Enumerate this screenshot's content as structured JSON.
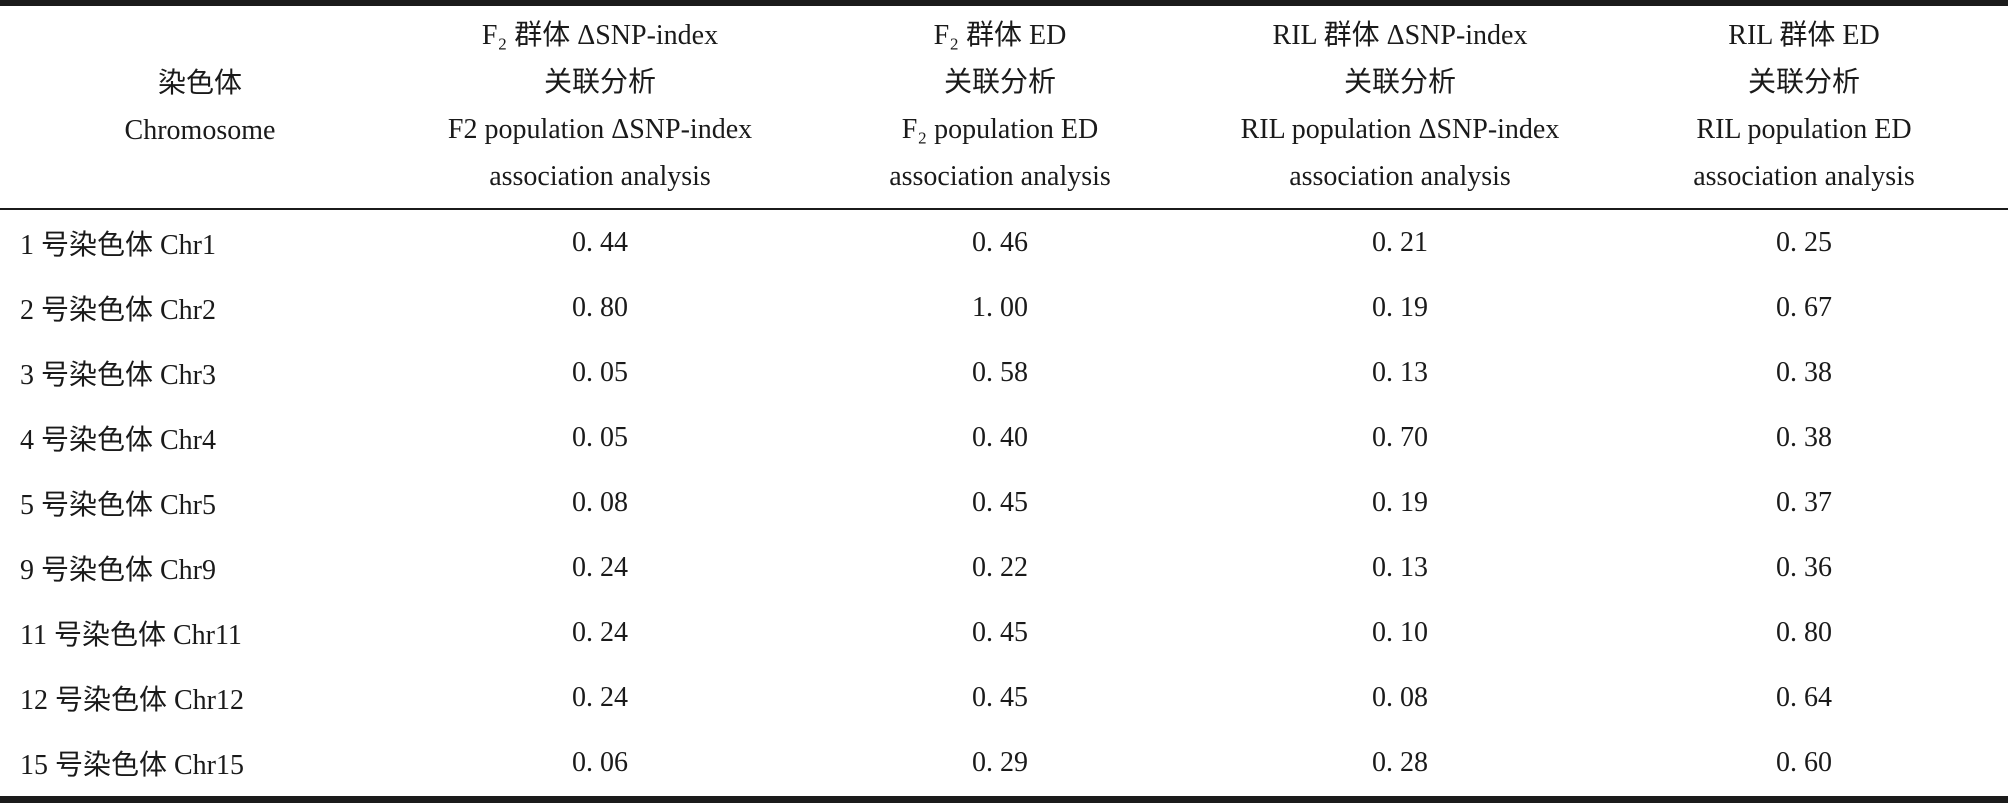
{
  "colors": {
    "background": "#ffffff",
    "text": "#1a1a1a",
    "rule": "#1b1b1b"
  },
  "table": {
    "header": {
      "chromosome": {
        "zh": "染色体",
        "en": "Chromosome"
      },
      "cols": [
        {
          "lines": [
            "F₂ 群体 ΔSNP-index",
            "关联分析",
            "F2 population ΔSNP-index",
            "association analysis"
          ]
        },
        {
          "lines": [
            "F₂ 群体 ED",
            "关联分析",
            "F₂ population ED",
            "association analysis"
          ]
        },
        {
          "lines": [
            "RIL 群体 ΔSNP-index",
            "关联分析",
            "RIL population ΔSNP-index",
            "association analysis"
          ]
        },
        {
          "lines": [
            "RIL 群体 ED",
            "关联分析",
            "RIL population ED",
            "association analysis"
          ]
        }
      ]
    },
    "rows": [
      {
        "label": "1 号染色体 Chr1",
        "values": [
          "0. 44",
          "0. 46",
          "0. 21",
          "0. 25"
        ]
      },
      {
        "label": "2 号染色体 Chr2",
        "values": [
          "0. 80",
          "1. 00",
          "0. 19",
          "0. 67"
        ]
      },
      {
        "label": "3 号染色体 Chr3",
        "values": [
          "0. 05",
          "0. 58",
          "0. 13",
          "0. 38"
        ]
      },
      {
        "label": "4 号染色体 Chr4",
        "values": [
          "0. 05",
          "0. 40",
          "0. 70",
          "0. 38"
        ]
      },
      {
        "label": "5 号染色体 Chr5",
        "values": [
          "0. 08",
          "0. 45",
          "0. 19",
          "0. 37"
        ]
      },
      {
        "label": "9 号染色体 Chr9",
        "values": [
          "0. 24",
          "0. 22",
          "0. 13",
          "0. 36"
        ]
      },
      {
        "label": "11 号染色体 Chr11",
        "values": [
          "0. 24",
          "0. 45",
          "0. 10",
          "0. 80"
        ]
      },
      {
        "label": "12 号染色体 Chr12",
        "values": [
          "0. 24",
          "0. 45",
          "0. 08",
          "0. 64"
        ]
      },
      {
        "label": "15 号染色体 Chr15",
        "values": [
          "0. 06",
          "0. 29",
          "0. 28",
          "0. 60"
        ]
      }
    ]
  },
  "chart_data": {
    "type": "table",
    "columns": [
      "染色体 Chromosome",
      "F₂ 群体 ΔSNP-index 关联分析 F2 population ΔSNP-index association analysis",
      "F₂ 群体 ED 关联分析 F₂ population ED association analysis",
      "RIL 群体 ΔSNP-index 关联分析 RIL population ΔSNP-index association analysis",
      "RIL 群体 ED 关联分析 RIL population ED association analysis"
    ],
    "rows": [
      {
        "chromosome": "Chr1",
        "f2_dsnp_index": 0.44,
        "f2_ed": 0.46,
        "ril_dsnp_index": 0.21,
        "ril_ed": 0.25
      },
      {
        "chromosome": "Chr2",
        "f2_dsnp_index": 0.8,
        "f2_ed": 1.0,
        "ril_dsnp_index": 0.19,
        "ril_ed": 0.67
      },
      {
        "chromosome": "Chr3",
        "f2_dsnp_index": 0.05,
        "f2_ed": 0.58,
        "ril_dsnp_index": 0.13,
        "ril_ed": 0.38
      },
      {
        "chromosome": "Chr4",
        "f2_dsnp_index": 0.05,
        "f2_ed": 0.4,
        "ril_dsnp_index": 0.7,
        "ril_ed": 0.38
      },
      {
        "chromosome": "Chr5",
        "f2_dsnp_index": 0.08,
        "f2_ed": 0.45,
        "ril_dsnp_index": 0.19,
        "ril_ed": 0.37
      },
      {
        "chromosome": "Chr9",
        "f2_dsnp_index": 0.24,
        "f2_ed": 0.22,
        "ril_dsnp_index": 0.13,
        "ril_ed": 0.36
      },
      {
        "chromosome": "Chr11",
        "f2_dsnp_index": 0.24,
        "f2_ed": 0.45,
        "ril_dsnp_index": 0.1,
        "ril_ed": 0.8
      },
      {
        "chromosome": "Chr12",
        "f2_dsnp_index": 0.24,
        "f2_ed": 0.45,
        "ril_dsnp_index": 0.08,
        "ril_ed": 0.64
      },
      {
        "chromosome": "Chr15",
        "f2_dsnp_index": 0.06,
        "f2_ed": 0.29,
        "ril_dsnp_index": 0.28,
        "ril_ed": 0.6
      }
    ]
  }
}
